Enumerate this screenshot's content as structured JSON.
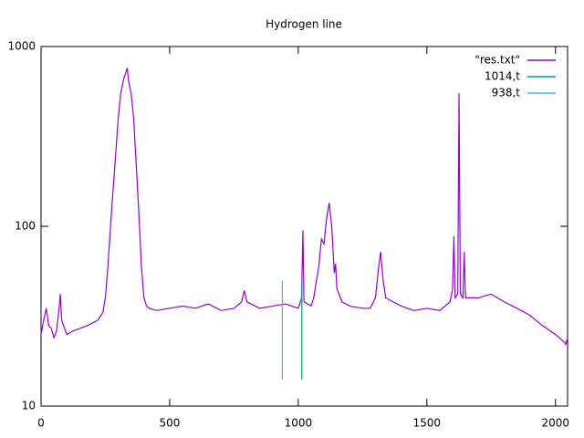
{
  "chart_data": {
    "type": "line",
    "title": "Hydrogen line",
    "xlim": [
      0,
      2047
    ],
    "ylim": [
      10,
      1000
    ],
    "log_y": true,
    "xticks": [
      0,
      500,
      1000,
      1500,
      2000
    ],
    "yticks": [
      10,
      100,
      1000
    ],
    "legend": "top-right",
    "series": [
      {
        "name": "\"res.txt\"",
        "color": "#9400d3",
        "x": [
          0,
          10,
          20,
          30,
          40,
          50,
          60,
          70,
          75,
          80,
          100,
          120,
          150,
          180,
          200,
          220,
          240,
          250,
          260,
          270,
          280,
          290,
          300,
          310,
          320,
          330,
          335,
          340,
          350,
          360,
          370,
          380,
          390,
          400,
          410,
          420,
          450,
          500,
          550,
          600,
          650,
          700,
          750,
          780,
          790,
          800,
          850,
          900,
          950,
          1000,
          1013,
          1018,
          1022,
          1050,
          1060,
          1080,
          1090,
          1100,
          1110,
          1120,
          1130,
          1140,
          1145,
          1150,
          1170,
          1200,
          1250,
          1280,
          1300,
          1310,
          1320,
          1330,
          1340,
          1400,
          1450,
          1500,
          1550,
          1590,
          1600,
          1605,
          1610,
          1620,
          1625,
          1630,
          1640,
          1645,
          1650,
          1700,
          1750,
          1800,
          1850,
          1900,
          1950,
          2000,
          2030,
          2040,
          2047
        ],
        "values": [
          25,
          30,
          35,
          28,
          27,
          24,
          26,
          35,
          42,
          30,
          25,
          26,
          27,
          28,
          29,
          30,
          33,
          40,
          60,
          100,
          160,
          250,
          400,
          550,
          650,
          720,
          760,
          650,
          550,
          400,
          220,
          120,
          60,
          40,
          36,
          35,
          34,
          35,
          36,
          35,
          37,
          34,
          35,
          38,
          44,
          38,
          35,
          36,
          37,
          35,
          40,
          95,
          38,
          36,
          40,
          60,
          85,
          80,
          110,
          135,
          100,
          55,
          62,
          45,
          38,
          36,
          35,
          35,
          40,
          55,
          72,
          50,
          40,
          36,
          34,
          35,
          34,
          38,
          45,
          88,
          40,
          42,
          550,
          42,
          40,
          72,
          40,
          40,
          42,
          38,
          35,
          32,
          28,
          25,
          23,
          22,
          24
        ]
      },
      {
        "name": "1014,t",
        "color": "#009e73",
        "x": [
          1014,
          1014
        ],
        "values": [
          14,
          50
        ]
      },
      {
        "name": "938,t",
        "color": "#56b4e9",
        "x": [
          938,
          938
        ],
        "values": [
          14,
          50
        ]
      }
    ]
  }
}
